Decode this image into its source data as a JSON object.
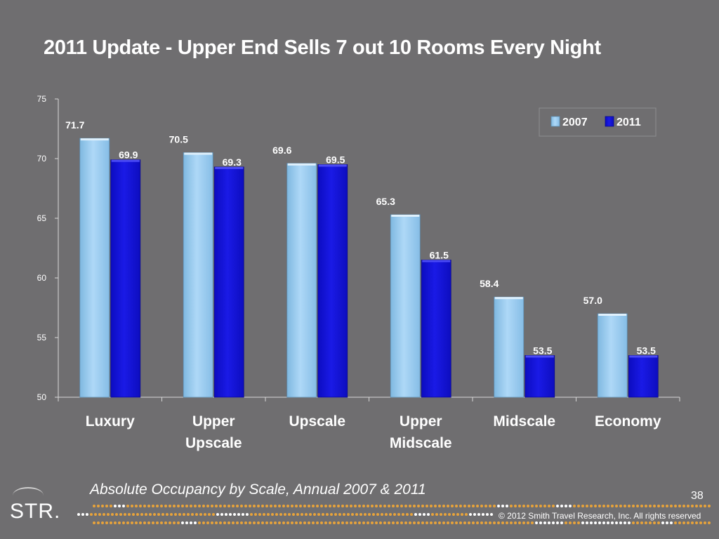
{
  "slide": {
    "title": "2011 Update - Upper End Sells 7 out 10 Rooms Every Night",
    "caption": "Absolute Occupancy by Scale, Annual 2007 & 2011",
    "page_number": "38",
    "logo_text": "STR.",
    "copyright": "© 2012 Smith Travel Research, Inc. All rights reserved"
  },
  "colors": {
    "background": "#6f6e70",
    "series_2007": "#aed8f7",
    "series_2011": "#1a1ae6",
    "dots": "#e8a33a"
  },
  "chart_data": {
    "type": "bar",
    "title": "2011 Update - Upper End Sells 7 out 10 Rooms Every Night",
    "categories": [
      "Luxury",
      "Upper\nUpscale",
      "Upscale",
      "Upper\nMidscale",
      "Midscale",
      "Economy"
    ],
    "series": [
      {
        "name": "2007",
        "values": [
          71.7,
          70.5,
          69.6,
          65.3,
          58.4,
          57.0
        ],
        "labels": [
          "71.7",
          "70.5",
          "69.6",
          "65.3",
          "58.4",
          "57.0"
        ]
      },
      {
        "name": "2011",
        "values": [
          69.9,
          69.3,
          69.5,
          61.5,
          53.5,
          53.5
        ],
        "labels": [
          "69.9",
          "69.3",
          "69.5",
          "61.5",
          "53.5",
          "53.5"
        ]
      }
    ],
    "ylim": [
      50,
      75
    ],
    "yticks": [
      "50",
      "55",
      "60",
      "65",
      "70",
      "75"
    ],
    "legend_position": "top-right",
    "grid": false
  }
}
